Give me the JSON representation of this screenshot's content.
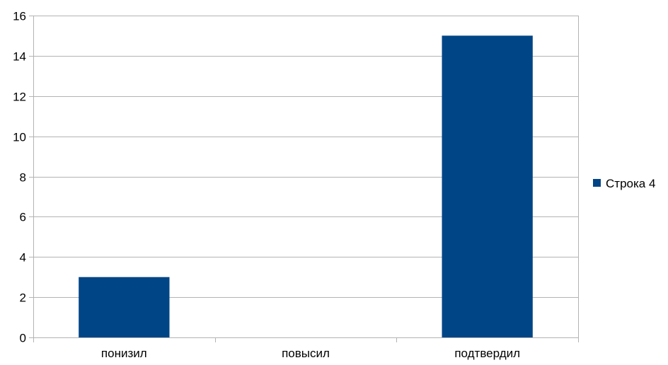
{
  "chart_data": {
    "type": "bar",
    "categories": [
      "понизил",
      "повысил",
      "подтвердил"
    ],
    "series": [
      {
        "name": "Строка 4",
        "values": [
          3,
          0,
          15
        ],
        "color": "#004586"
      }
    ],
    "ylim": [
      0,
      16
    ],
    "yticks": [
      0,
      2,
      4,
      6,
      8,
      10,
      12,
      14,
      16
    ],
    "ytick_labels": [
      "0",
      "2",
      "4",
      "6",
      "8",
      "10",
      "12",
      "14",
      "16"
    ],
    "grid": true,
    "legend_position": "right",
    "title": "",
    "xlabel": "",
    "ylabel": ""
  }
}
